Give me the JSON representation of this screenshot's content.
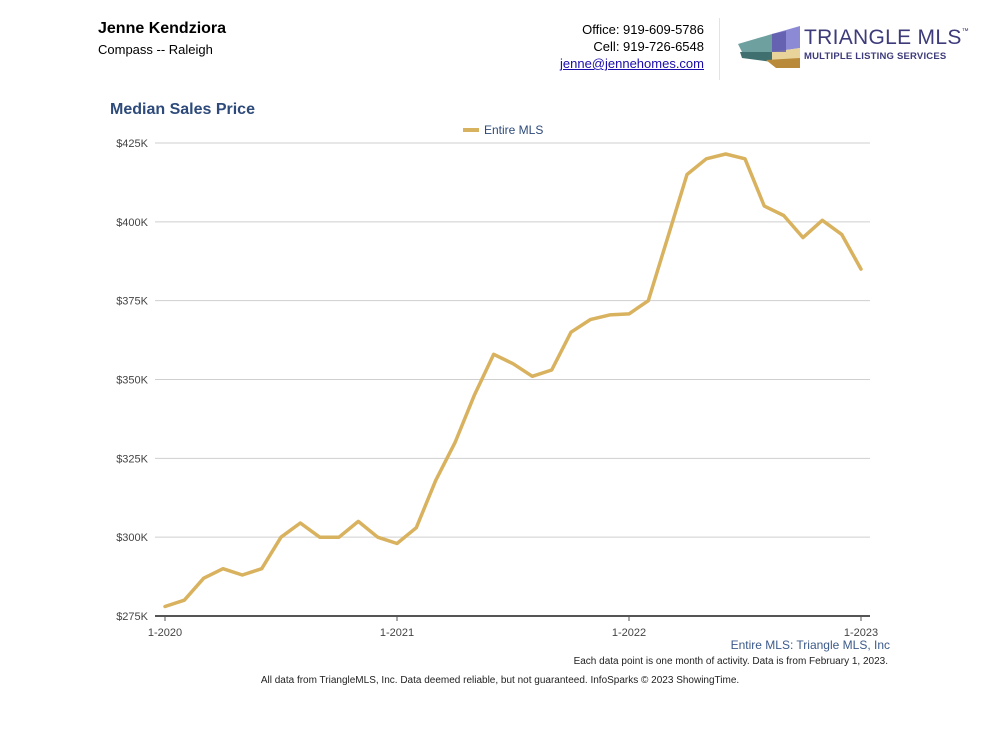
{
  "agent": {
    "name": "Jenne Kendziora",
    "company": "Compass -- Raleigh"
  },
  "contact": {
    "office": "Office: 919-609-5786",
    "cell": "Cell: 919-726-6548",
    "email": "jenne@jennehomes.com"
  },
  "logo": {
    "title": "TRIANGLE MLS",
    "trademark": "™",
    "subtitle": "MULTIPLE LISTING SERVICES"
  },
  "footer": {
    "source": "Entire MLS: Triangle MLS, Inc",
    "note": "Each data point is one month of activity. Data is from February 1, 2023.",
    "disclaimer": "All data from TriangleMLS, Inc. Data deemed reliable, but not guaranteed. InfoSparks © 2023 ShowingTime."
  },
  "colors": {
    "line": "#d9b25f",
    "grid": "#cfcfcf",
    "title": "#2d4a7a"
  },
  "chart_data": {
    "type": "line",
    "title": "Median Sales Price",
    "xlabel": "",
    "ylabel": "",
    "ylim": [
      275000,
      425000
    ],
    "y_ticks": [
      275000,
      300000,
      325000,
      350000,
      375000,
      400000,
      425000
    ],
    "y_tick_labels": [
      "$275K",
      "$300K",
      "$325K",
      "$350K",
      "$375K",
      "$400K",
      "$425K"
    ],
    "x_tick_labels": [
      "1-2020",
      "1-2021",
      "1-2022",
      "1-2023"
    ],
    "x_tick_indices": [
      0,
      12,
      24,
      36
    ],
    "x": [
      "1-2020",
      "2-2020",
      "3-2020",
      "4-2020",
      "5-2020",
      "6-2020",
      "7-2020",
      "8-2020",
      "9-2020",
      "10-2020",
      "11-2020",
      "12-2020",
      "1-2021",
      "2-2021",
      "3-2021",
      "4-2021",
      "5-2021",
      "6-2021",
      "7-2021",
      "8-2021",
      "9-2021",
      "10-2021",
      "11-2021",
      "12-2021",
      "1-2022",
      "2-2022",
      "3-2022",
      "4-2022",
      "5-2022",
      "6-2022",
      "7-2022",
      "8-2022",
      "9-2022",
      "10-2022",
      "11-2022",
      "12-2022",
      "1-2023"
    ],
    "series": [
      {
        "name": "Entire MLS",
        "values": [
          278000,
          280000,
          287000,
          290000,
          288000,
          290000,
          300000,
          304500,
          300000,
          300000,
          305000,
          300000,
          298000,
          303000,
          318000,
          330000,
          345000,
          358000,
          355000,
          351000,
          353000,
          365000,
          369000,
          370500,
          370800,
          375000,
          395000,
          415000,
          420000,
          421500,
          420000,
          405000,
          402000,
          395000,
          400500,
          396000,
          385000
        ]
      }
    ],
    "legend": "top-center"
  }
}
